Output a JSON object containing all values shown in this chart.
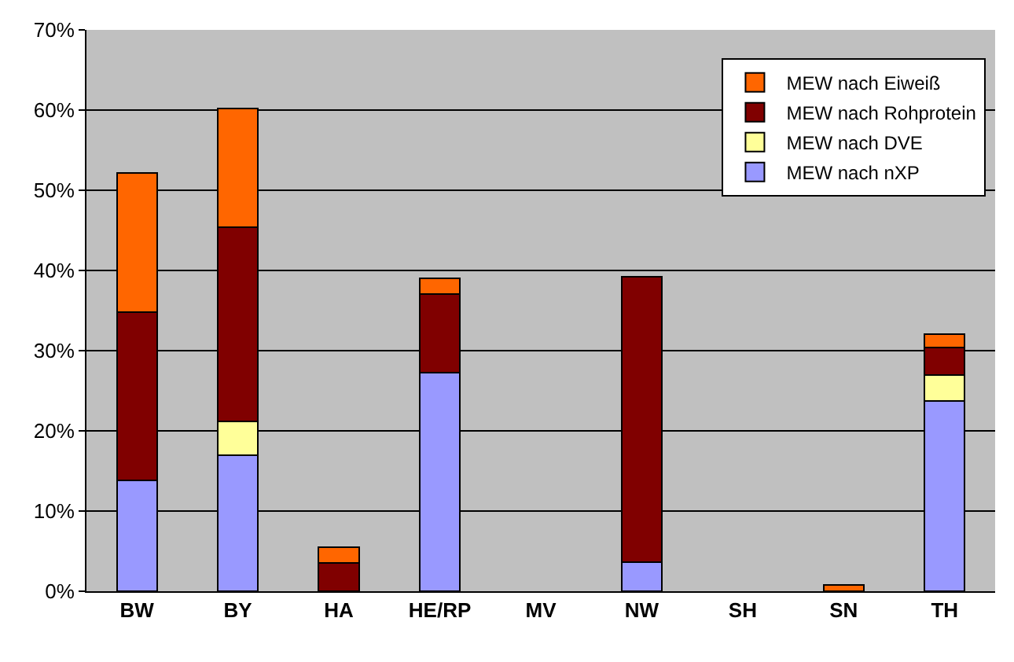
{
  "chart_data": {
    "type": "bar",
    "stacked": true,
    "categories": [
      "BW",
      "BY",
      "HA",
      "HE/RP",
      "MV",
      "NW",
      "SH",
      "SN",
      "TH"
    ],
    "series": [
      {
        "name": "MEW nach nXP",
        "color": "#9999ff",
        "values": [
          13.8,
          17.0,
          null,
          27.3,
          null,
          3.6,
          null,
          null,
          23.7
        ]
      },
      {
        "name": "MEW nach DVE",
        "color": "#ffff99",
        "values": [
          null,
          4.2,
          null,
          null,
          null,
          null,
          null,
          null,
          3.3
        ]
      },
      {
        "name": "MEW nach Rohprotein",
        "color": "#800000",
        "values": [
          21.0,
          24.2,
          3.5,
          9.8,
          null,
          35.6,
          null,
          null,
          3.4
        ]
      },
      {
        "name": "MEW nach Eiweiß",
        "color": "#ff6600",
        "values": [
          17.4,
          14.8,
          2.0,
          1.9,
          null,
          null,
          null,
          0.8,
          1.7
        ]
      }
    ],
    "ylim": [
      0,
      70
    ],
    "yticks": [
      {
        "value": 0,
        "label": "0%"
      },
      {
        "value": 10,
        "label": "10%"
      },
      {
        "value": 20,
        "label": "20%"
      },
      {
        "value": 30,
        "label": "30%"
      },
      {
        "value": 40,
        "label": "40%"
      },
      {
        "value": 50,
        "label": "50%"
      },
      {
        "value": 60,
        "label": "60%"
      },
      {
        "value": 70,
        "label": "70%"
      }
    ],
    "grid": "y",
    "legend": "top right"
  }
}
